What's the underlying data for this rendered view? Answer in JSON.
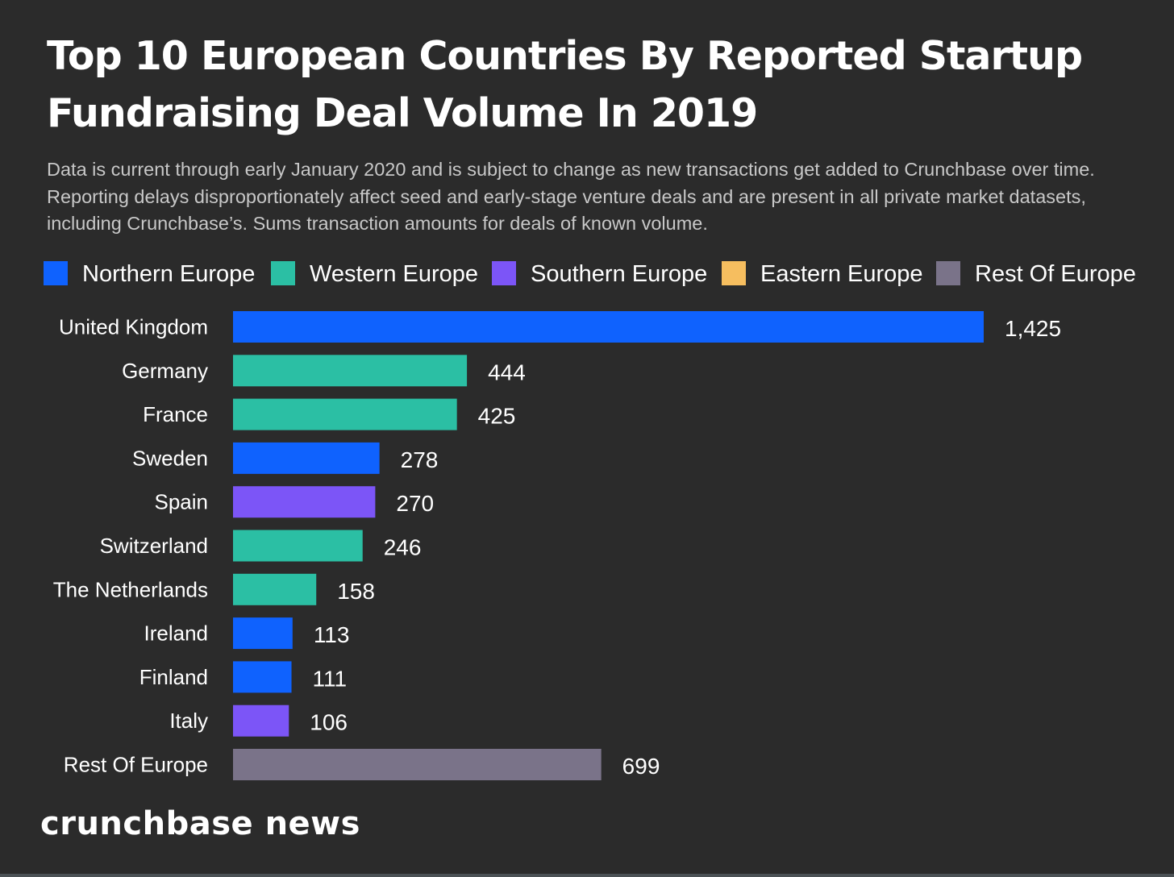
{
  "title": "Top 10 European Countries By Reported Startup Fundraising Deal Volume In 2019",
  "subtitle": "Data is current through early January 2020 and is subject to change as new transactions get added to Crunchbase over time. Reporting delays disproportionately affect seed and early-stage venture deals and are present in all private market datasets, including Crunchbase’s. Sums transaction amounts for deals of known volume.",
  "legend": [
    {
      "label": "Northern Europe",
      "color": "#0f62fe"
    },
    {
      "label": "Western Europe",
      "color": "#2bbfa4"
    },
    {
      "label": "Southern Europe",
      "color": "#7c55f7"
    },
    {
      "label": "Eastern Europe",
      "color": "#f6be5f"
    },
    {
      "label": "Rest Of Europe",
      "color": "#7a7389"
    }
  ],
  "chart_data": {
    "type": "bar",
    "orientation": "horizontal",
    "categories": [
      "United Kingdom",
      "Germany",
      "France",
      "Sweden",
      "Spain",
      "Switzerland",
      "The Netherlands",
      "Ireland",
      "Finland",
      "Italy",
      "Rest Of Europe"
    ],
    "values": [
      1425,
      444,
      425,
      278,
      270,
      246,
      158,
      113,
      111,
      106,
      699
    ],
    "value_labels": [
      "1,425",
      "444",
      "425",
      "278",
      "270",
      "246",
      "158",
      "113",
      "111",
      "106",
      "699"
    ],
    "regions": [
      "Northern Europe",
      "Western Europe",
      "Western Europe",
      "Northern Europe",
      "Southern Europe",
      "Western Europe",
      "Western Europe",
      "Northern Europe",
      "Northern Europe",
      "Southern Europe",
      "Rest Of Europe"
    ],
    "xlim": [
      0,
      1425
    ],
    "grid": false,
    "legend_position": "top"
  },
  "brand": "crunchbase news"
}
